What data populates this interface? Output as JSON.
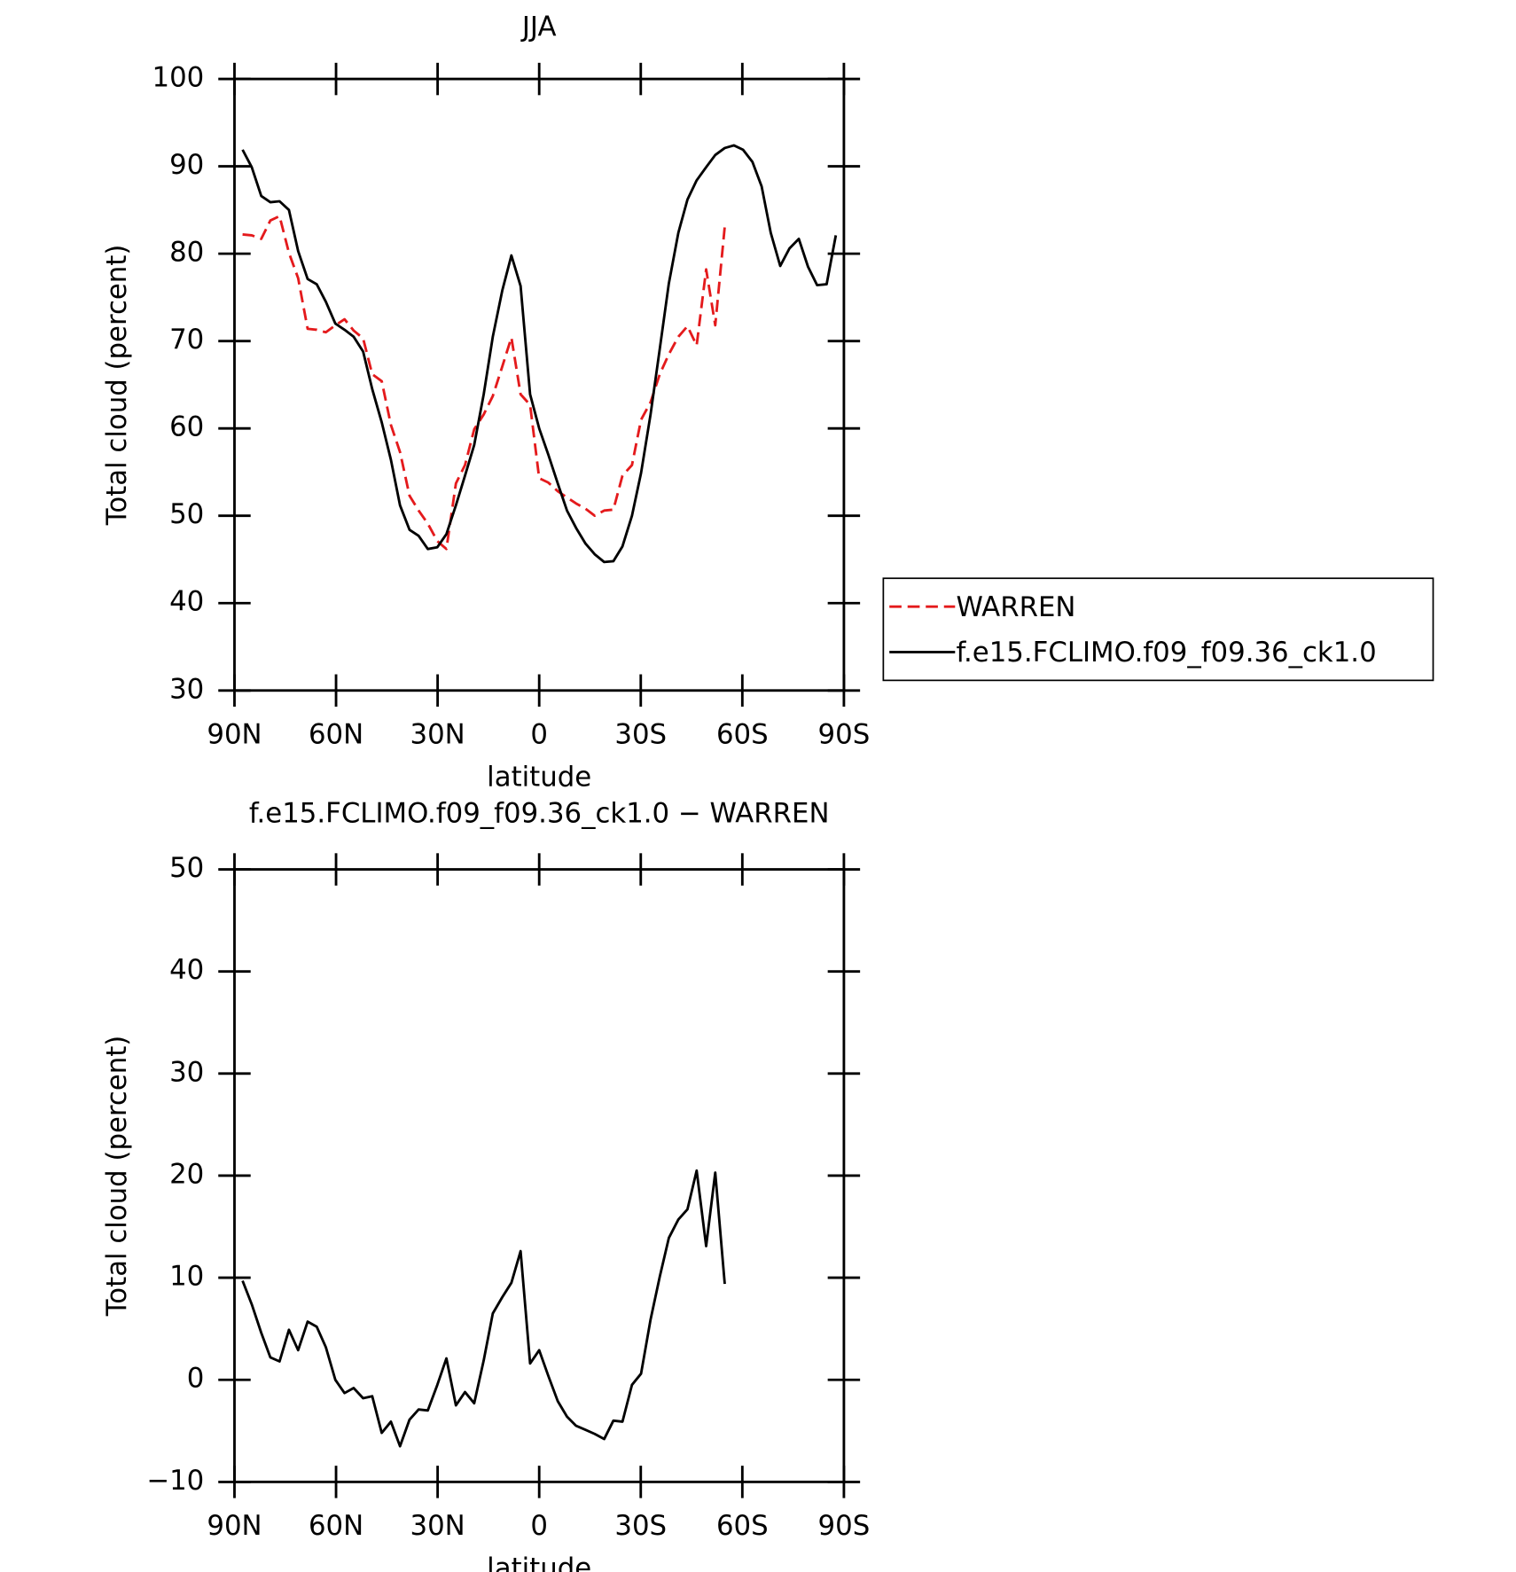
{
  "chart_data": [
    {
      "type": "line",
      "title": "JJA",
      "xlabel": "latitude",
      "ylabel": "Total cloud (percent)",
      "x": [
        87.6,
        84.9,
        82.1,
        79.4,
        76.7,
        73.9,
        71.2,
        68.4,
        65.7,
        63.0,
        60.2,
        57.5,
        54.8,
        52.0,
        49.3,
        46.5,
        43.8,
        41.1,
        38.3,
        35.6,
        32.9,
        30.1,
        27.4,
        24.6,
        21.9,
        19.2,
        16.4,
        13.7,
        10.9,
        8.2,
        5.5,
        2.7,
        0,
        -2.7,
        -5.5,
        -8.2,
        -10.9,
        -13.7,
        -16.4,
        -19.2,
        -21.9,
        -24.6,
        -27.4,
        -30.1,
        -32.9,
        -35.6,
        -38.3,
        -41.1,
        -43.8,
        -46.5,
        -49.3,
        -52.0,
        -54.8,
        -57.5,
        -60.2,
        -63.0,
        -65.7,
        -68.4,
        -71.2,
        -73.9,
        -76.7,
        -79.4,
        -82.1,
        -84.9,
        -87.6
      ],
      "xlim": [
        90,
        -90
      ],
      "xticks": [
        {
          "value": 90,
          "label": "90N"
        },
        {
          "value": 60,
          "label": "60N"
        },
        {
          "value": 30,
          "label": "30N"
        },
        0,
        {
          "value": -30,
          "label": "30S"
        },
        {
          "value": -60,
          "label": "60S"
        },
        {
          "value": -90,
          "label": "90S"
        }
      ],
      "ylim": [
        30,
        100
      ],
      "yticks": [
        30,
        40,
        50,
        60,
        70,
        80,
        90,
        100
      ],
      "legend": "right",
      "series": [
        {
          "name": "WARREN",
          "color": "#e41a1c",
          "dash": true,
          "values": [
            82.2,
            82.1,
            81.7,
            83.8,
            84.3,
            80.1,
            77.2,
            71.4,
            71.3,
            71.0,
            71.8,
            72.5,
            71.2,
            70.3,
            66.2,
            65.4,
            60.4,
            57.3,
            52.3,
            50.6,
            49.1,
            47.1,
            46.2,
            53.7,
            55.8,
            59.9,
            61.6,
            63.7,
            67.1,
            70.4,
            63.9,
            62.7,
            54.3,
            53.8,
            52.8,
            52.1,
            51.4,
            50.8,
            50.0,
            50.6,
            50.7,
            54.6,
            55.8,
            61.0,
            63.0,
            66.2,
            68.5,
            70.5,
            71.7,
            69.5,
            78.2,
            71.8,
            83.1,
            null,
            null,
            null,
            null,
            null,
            null,
            null,
            null,
            null,
            null,
            null,
            null
          ]
        },
        {
          "name": "f.e15.FCLIMO.f09_f09.36_ck1.0",
          "color": "#000000",
          "dash": false,
          "values": [
            91.9,
            89.9,
            86.6,
            85.9,
            86.0,
            85.0,
            80.3,
            77.1,
            76.5,
            74.5,
            72.0,
            71.3,
            70.5,
            68.8,
            64.5,
            60.7,
            56.4,
            51.2,
            48.4,
            47.7,
            46.2,
            46.4,
            47.9,
            51.2,
            54.6,
            58.1,
            63.9,
            70.5,
            75.8,
            79.8,
            76.3,
            63.9,
            60.0,
            57.0,
            53.7,
            50.6,
            48.6,
            46.8,
            45.6,
            44.7,
            44.8,
            46.5,
            50.0,
            54.9,
            61.6,
            69.1,
            76.6,
            82.4,
            86.2,
            88.4,
            89.9,
            91.3,
            92.1,
            92.4,
            91.9,
            90.5,
            87.7,
            82.4,
            78.6,
            80.6,
            81.7,
            78.5,
            76.4,
            76.5,
            82.1
          ]
        }
      ]
    },
    {
      "type": "line",
      "title": "f.e15.FCLIMO.f09_f09.36_ck1.0 − WARREN",
      "xlabel": "latitude",
      "ylabel": "Total cloud (percent)",
      "x": [
        87.6,
        84.9,
        82.1,
        79.4,
        76.7,
        73.9,
        71.2,
        68.4,
        65.7,
        63.0,
        60.2,
        57.5,
        54.8,
        52.0,
        49.3,
        46.5,
        43.8,
        41.1,
        38.3,
        35.6,
        32.9,
        30.1,
        27.4,
        24.6,
        21.9,
        19.2,
        16.4,
        13.7,
        10.9,
        8.2,
        5.5,
        2.7,
        0,
        -2.7,
        -5.5,
        -8.2,
        -10.9,
        -13.7,
        -16.4,
        -19.2,
        -21.9,
        -24.6,
        -27.4,
        -30.1,
        -32.9,
        -35.6,
        -38.3,
        -41.1,
        -43.8,
        -46.5,
        -49.3,
        -52.0,
        -54.8
      ],
      "xlim": [
        90,
        -90
      ],
      "xticks": [
        {
          "value": 90,
          "label": "90N"
        },
        {
          "value": 60,
          "label": "60N"
        },
        {
          "value": 30,
          "label": "30N"
        },
        0,
        {
          "value": -30,
          "label": "30S"
        },
        {
          "value": -60,
          "label": "60S"
        },
        {
          "value": -90,
          "label": "90S"
        }
      ],
      "ylim": [
        -10,
        50
      ],
      "yticks": [
        {
          "value": -10,
          "label": "−10"
        },
        0,
        10,
        20,
        30,
        40,
        50
      ],
      "series": [
        {
          "color": "#000000",
          "dash": false,
          "values": [
            9.7,
            7.4,
            4.6,
            2.2,
            1.8,
            4.9,
            2.9,
            5.7,
            5.2,
            3.2,
            0.0,
            -1.3,
            -0.8,
            -1.8,
            -1.6,
            -5.2,
            -4.1,
            -6.5,
            -3.9,
            -2.9,
            -3.0,
            -0.5,
            2.1,
            -2.5,
            -1.2,
            -2.3,
            1.9,
            6.5,
            8.1,
            9.5,
            12.6,
            1.6,
            2.9,
            0.4,
            -2.1,
            -3.6,
            -4.5,
            -4.9,
            -5.3,
            -5.8,
            -4.0,
            -4.1,
            -0.5,
            0.6,
            5.9,
            10.1,
            13.9,
            15.7,
            16.7,
            20.5,
            13.1,
            20.3,
            9.4
          ]
        }
      ]
    }
  ]
}
